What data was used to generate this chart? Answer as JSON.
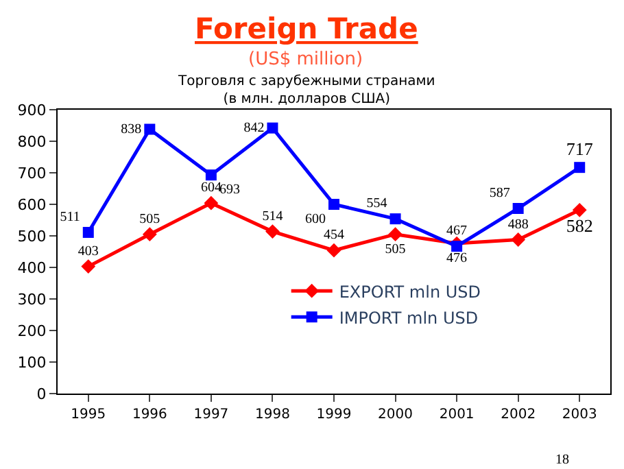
{
  "chart_data": {
    "type": "line",
    "title": "Foreign Trade",
    "subtitle": "(US$ million)",
    "annotations": [
      "Торговля с зарубежными странами\n(в млн. долларов США)",
      "18"
    ],
    "categories": [
      "1995",
      "1996",
      "1997",
      "1998",
      "1999",
      "2000",
      "2001",
      "2002",
      "2003"
    ],
    "series": [
      {
        "name": "EXPORT mln USD",
        "color": "#ff0000",
        "marker": "diamond",
        "values": [
          403,
          505,
          604,
          514,
          454,
          505,
          476,
          488,
          582
        ]
      },
      {
        "name": "IMPORT mln USD",
        "color": "#0000ff",
        "marker": "square",
        "values": [
          511,
          838,
          693,
          842,
          600,
          554,
          467,
          587,
          717
        ]
      }
    ],
    "ylim": [
      0,
      900
    ],
    "yticks": [
      0,
      100,
      200,
      300,
      400,
      500,
      600,
      700,
      800,
      900
    ],
    "data_labels": true,
    "grid": false,
    "legend": "bottom right"
  }
}
